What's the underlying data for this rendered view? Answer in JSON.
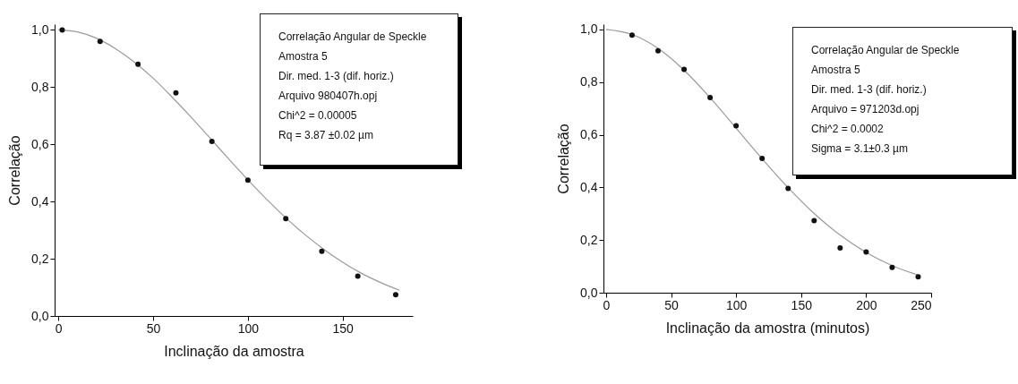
{
  "chart_data": [
    {
      "type": "scatter",
      "xlabel": "Inclinação da amostra",
      "ylabel": "Correlação",
      "xlim": [
        -2,
        187
      ],
      "ylim": [
        0,
        1.02
      ],
      "xticks": [
        0,
        50,
        100,
        150
      ],
      "legend": false,
      "yticks": [
        {
          "value": 0,
          "label": "0,0"
        },
        {
          "value": 0.2,
          "label": "0,2"
        },
        {
          "value": 0.4,
          "label": "0,4"
        },
        {
          "value": 0.6,
          "label": "0,6"
        },
        {
          "value": 0.8,
          "label": "0,8"
        },
        {
          "value": 1,
          "label": "1,0"
        }
      ],
      "grid": false,
      "annotations": [
        "Correlação Angular de Speckle",
        "Amostra 5",
        "Dir. med. 1-3 (dif. horiz.)",
        "Arquivo 980407h.opj",
        "Chi^2 = 0.00005",
        "Rq = 3.87        ±0.02 µm"
      ],
      "series": [
        {
          "type": "line",
          "color": "#9a9a9a",
          "line_style": "solid",
          "marker": "none",
          "x": [
            0,
            10,
            20,
            30,
            40,
            50,
            60,
            70,
            80,
            90,
            100,
            110,
            120,
            130,
            140,
            150,
            160,
            170,
            180
          ],
          "values": [
            1.0,
            0.993,
            0.971,
            0.935,
            0.888,
            0.831,
            0.765,
            0.695,
            0.622,
            0.548,
            0.476,
            0.407,
            0.343,
            0.285,
            0.233,
            0.188,
            0.149,
            0.117,
            0.09
          ]
        },
        {
          "type": "scatter",
          "color": "#111111",
          "marker": "circle",
          "x": [
            2,
            22,
            42,
            62,
            81,
            100,
            120,
            139,
            158,
            178
          ],
          "values": [
            1.0,
            0.96,
            0.88,
            0.78,
            0.61,
            0.475,
            0.34,
            0.226,
            0.139,
            0.074
          ]
        }
      ]
    },
    {
      "type": "scatter",
      "xlabel": "Inclinação da amostra (minutos)",
      "ylabel": "Correlação",
      "xlim": [
        -2,
        250
      ],
      "ylim": [
        0,
        1.02
      ],
      "xticks": [
        0,
        50,
        100,
        150,
        200,
        250
      ],
      "legend": false,
      "yticks": [
        {
          "value": 0,
          "label": "0,0"
        },
        {
          "value": 0.2,
          "label": "0,2"
        },
        {
          "value": 0.4,
          "label": "0,4"
        },
        {
          "value": 0.6,
          "label": "0,6"
        },
        {
          "value": 0.8,
          "label": "0,8"
        },
        {
          "value": 1,
          "label": "1,0"
        }
      ],
      "grid": false,
      "annotations": [
        "Correlação Angular de Speckle",
        "Amostra 5",
        "Dir. med. 1-3 (dif. horiz.)",
        "Arquivo = 971203d.opj",
        "Chi^2 = 0.0002",
        "Sigma = 3.1±0.3 µm"
      ],
      "series": [
        {
          "type": "line",
          "color": "#9a9a9a",
          "line_style": "solid",
          "marker": "none",
          "x": [
            0,
            20,
            40,
            60,
            80,
            100,
            120,
            140,
            160,
            180,
            200,
            220,
            240
          ],
          "values": [
            1.0,
            0.981,
            0.928,
            0.845,
            0.741,
            0.625,
            0.509,
            0.399,
            0.301,
            0.219,
            0.153,
            0.103,
            0.067
          ]
        },
        {
          "type": "scatter",
          "color": "#111111",
          "marker": "circle",
          "x": [
            20,
            40,
            60,
            80,
            100,
            120,
            140,
            160,
            180,
            200,
            220,
            240
          ],
          "values": [
            0.978,
            0.919,
            0.848,
            0.741,
            0.634,
            0.51,
            0.396,
            0.274,
            0.17,
            0.155,
            0.096,
            0.06
          ]
        }
      ]
    }
  ]
}
